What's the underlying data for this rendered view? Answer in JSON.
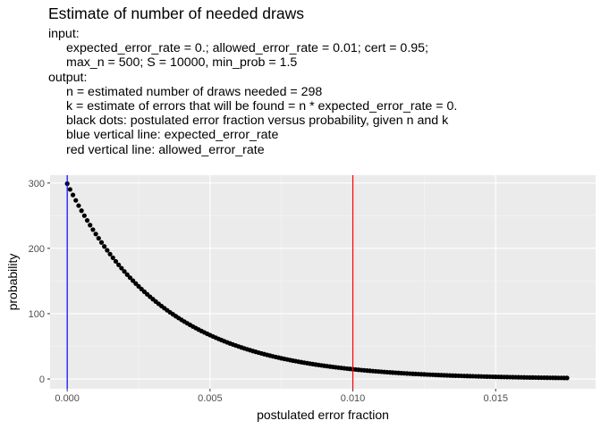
{
  "chart_data": {
    "type": "scatter",
    "title": "Estimate of number of needed draws",
    "subtitle_lines": [
      {
        "text": "input:",
        "indent": false
      },
      {
        "text": "expected_error_rate = 0.; allowed_error_rate = 0.01; cert = 0.95;",
        "indent": true
      },
      {
        "text": "max_n = 500; S = 10000, min_prob = 1.5",
        "indent": true
      },
      {
        "text": "output:",
        "indent": false
      },
      {
        "text": "n = estimated number of draws needed = 298",
        "indent": true
      },
      {
        "text": "k = estimate of errors that will be found = n * expected_error_rate = 0.",
        "indent": true
      },
      {
        "text": "black dots: postulated error fraction versus probability, given n and k",
        "indent": true
      },
      {
        "text": "blue vertical line: expected_error_rate",
        "indent": true
      },
      {
        "text": "red vertical line:  allowed_error_rate",
        "indent": true
      }
    ],
    "xlabel": "postulated error fraction",
    "ylabel": "probability",
    "xlim": [
      -0.0006,
      0.0185
    ],
    "ylim": [
      -15,
      312
    ],
    "x_ticks": [
      0.0,
      0.005,
      0.01,
      0.015
    ],
    "x_tick_labels": [
      "0.000",
      "0.005",
      "0.010",
      "0.015"
    ],
    "y_ticks": [
      0,
      100,
      200,
      300
    ],
    "y_tick_labels": [
      "0",
      "100",
      "200",
      "300"
    ],
    "grid": true,
    "series": [
      {
        "color": "#000000",
        "n": 298,
        "x_start": 0.0,
        "x_end": 0.0175,
        "x_step": 0.0001,
        "y_formula": "(n+1) * (1 - x)^n"
      }
    ],
    "vlines": [
      {
        "x": 0.0,
        "color": "#0000ff"
      },
      {
        "x": 0.01,
        "color": "#ff0000"
      }
    ],
    "colors": {
      "panel": "#ebebeb",
      "grid_major": "#ffffff",
      "grid_minor": "#f5f5f5"
    }
  }
}
